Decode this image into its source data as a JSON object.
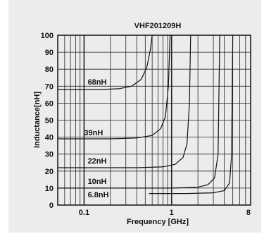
{
  "chart_data": {
    "type": "line",
    "title": "VHF201209H",
    "xlabel": "Frequency [GHz]",
    "ylabel": "Inductance[nH]",
    "x_scale": "log",
    "xlim": [
      0.05,
      8
    ],
    "ylim": [
      0,
      100
    ],
    "x_tick_labels": [
      {
        "value": 0.1,
        "label": "0.1"
      },
      {
        "value": 1,
        "label": "1"
      },
      {
        "value": 8,
        "label": "8"
      }
    ],
    "y_ticks": [
      0,
      10,
      20,
      30,
      40,
      50,
      60,
      70,
      80,
      90,
      100
    ],
    "grid": true,
    "series": [
      {
        "name": "68nH",
        "x": [
          0.05,
          0.15,
          0.25,
          0.35,
          0.45,
          0.52,
          0.57,
          0.6
        ],
        "y": [
          68,
          68,
          68.5,
          70,
          74,
          81,
          91,
          100
        ]
      },
      {
        "name": "39nH",
        "x": [
          0.05,
          0.2,
          0.4,
          0.6,
          0.75,
          0.85,
          0.92,
          0.96
        ],
        "y": [
          39,
          39,
          39.5,
          41,
          45,
          52,
          70,
          100
        ]
      },
      {
        "name": "22nH",
        "x": [
          0.05,
          0.4,
          0.8,
          1.1,
          1.35,
          1.5,
          1.6,
          1.65
        ],
        "y": [
          22,
          22,
          22.5,
          24,
          28,
          36,
          60,
          100
        ]
      },
      {
        "name": "10nH",
        "x": [
          0.05,
          1,
          2,
          2.6,
          3.1,
          3.4,
          3.55
        ],
        "y": [
          10,
          10,
          10.5,
          12,
          16,
          30,
          100
        ]
      },
      {
        "name": "6.8nH",
        "x": [
          0.55,
          1.5,
          3,
          4,
          4.6,
          4.85,
          5.0
        ],
        "y": [
          6.8,
          6.8,
          7.2,
          8.5,
          13,
          30,
          100
        ]
      }
    ],
    "series_label_points": [
      {
        "name": "68nH",
        "x": 0.11,
        "y": 71
      },
      {
        "name": "39nH",
        "x": 0.1,
        "y": 41
      },
      {
        "name": "22nH",
        "x": 0.11,
        "y": 24.5
      },
      {
        "name": "10nH",
        "x": 0.11,
        "y": 12.5
      },
      {
        "name": "6.8nH",
        "x": 0.11,
        "y": 4.5
      }
    ],
    "colors": {
      "line": "#111111",
      "grid": "#222222",
      "background": "#ececec"
    }
  }
}
